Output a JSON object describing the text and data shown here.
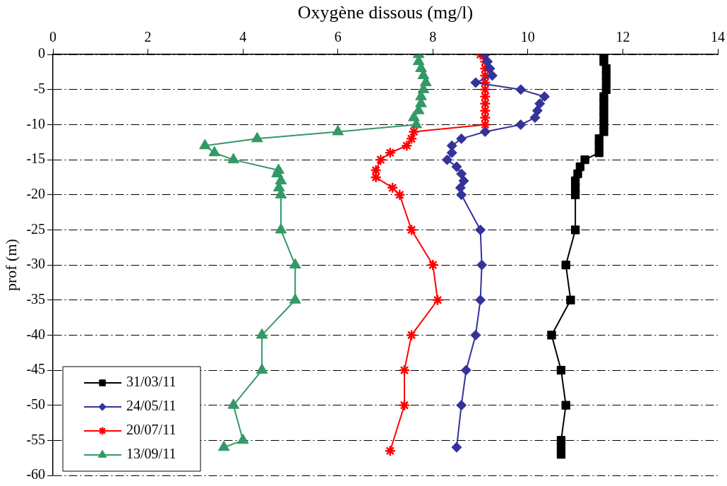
{
  "chart_data": {
    "type": "line",
    "xlabel": "Oxygène dissous (mg/l)",
    "ylabel": "prof (m)",
    "xlim": [
      0,
      14
    ],
    "xticks": [
      0,
      2,
      4,
      6,
      8,
      10,
      12,
      14
    ],
    "ylim": [
      -60,
      0
    ],
    "yticks": [
      0,
      -5,
      -10,
      -15,
      -20,
      -25,
      -30,
      -35,
      -40,
      -45,
      -50,
      -55,
      -60
    ],
    "grid": "y",
    "legend": "bottom left",
    "line_style": "solid",
    "series": [
      {
        "name": "31/03/11",
        "color": "#000000",
        "marker": "square",
        "x": [
          11.6,
          11.6,
          11.65,
          11.65,
          11.65,
          11.65,
          11.6,
          11.6,
          11.6,
          11.6,
          11.6,
          11.6,
          11.5,
          11.5,
          11.5,
          11.2,
          11.1,
          11.05,
          11.0,
          11.0,
          11.0,
          11.0,
          10.8,
          10.9,
          10.5,
          10.7,
          10.8,
          10.7,
          10.7,
          10.7
        ],
        "values": [
          0,
          -1,
          -2,
          -3,
          -4,
          -5,
          -6,
          -7,
          -8,
          -9,
          -10,
          -11,
          -12,
          -13,
          -14,
          -15,
          -16,
          -17,
          -18,
          -19,
          -20,
          -25,
          -30,
          -35,
          -40,
          -45,
          -50,
          -55,
          -56,
          -57
        ]
      },
      {
        "name": "24/05/11",
        "color": "#333399",
        "marker": "diamond",
        "x": [
          9.1,
          9.15,
          9.2,
          9.25,
          8.9,
          9.85,
          10.35,
          10.25,
          10.2,
          10.15,
          9.85,
          9.1,
          8.6,
          8.4,
          8.4,
          8.3,
          8.5,
          8.6,
          8.65,
          8.58,
          8.6,
          9.0,
          9.03,
          9.0,
          8.9,
          8.7,
          8.6,
          8.5
        ],
        "values": [
          0,
          -1,
          -2,
          -3,
          -4,
          -5,
          -6,
          -7,
          -8,
          -9,
          -10,
          -11,
          -12,
          -13,
          -14,
          -15,
          -16,
          -17,
          -18,
          -19,
          -20,
          -25,
          -30,
          -35,
          -40,
          -45,
          -50,
          -56
        ]
      },
      {
        "name": "20/07/11",
        "color": "#ff0000",
        "marker": "cross",
        "x": [
          9.0,
          9.1,
          9.1,
          9.1,
          9.1,
          9.1,
          9.1,
          9.1,
          9.1,
          9.1,
          9.1,
          7.6,
          7.55,
          7.45,
          7.1,
          6.9,
          6.8,
          6.8,
          7.15,
          7.3,
          7.55,
          8.0,
          8.1,
          7.55,
          7.4,
          7.4,
          7.1
        ],
        "values": [
          0,
          -1,
          -2,
          -3,
          -4,
          -5,
          -6,
          -7,
          -8,
          -9,
          -10,
          -11,
          -12,
          -13,
          -14,
          -15,
          -16.5,
          -17.5,
          -19,
          -20,
          -25,
          -30,
          -35,
          -40,
          -45,
          -50,
          -56.5
        ]
      },
      {
        "name": "13/09/11",
        "color": "#339966",
        "marker": "triangle",
        "x": [
          7.7,
          7.7,
          7.75,
          7.8,
          7.85,
          7.8,
          7.75,
          7.75,
          7.7,
          7.6,
          7.65,
          6.0,
          4.3,
          3.2,
          3.4,
          3.8,
          4.75,
          4.72,
          4.8,
          4.76,
          4.8,
          4.8,
          5.1,
          5.1,
          4.4,
          4.4,
          3.8,
          4.0,
          3.6
        ],
        "values": [
          0,
          -1,
          -2,
          -3,
          -4,
          -5,
          -6,
          -7,
          -8,
          -9,
          -10,
          -11,
          -12,
          -13,
          -14,
          -15,
          -16.5,
          -17,
          -18,
          -19,
          -20,
          -25,
          -30,
          -35,
          -40,
          -45,
          -50,
          -55,
          -56
        ]
      }
    ]
  }
}
